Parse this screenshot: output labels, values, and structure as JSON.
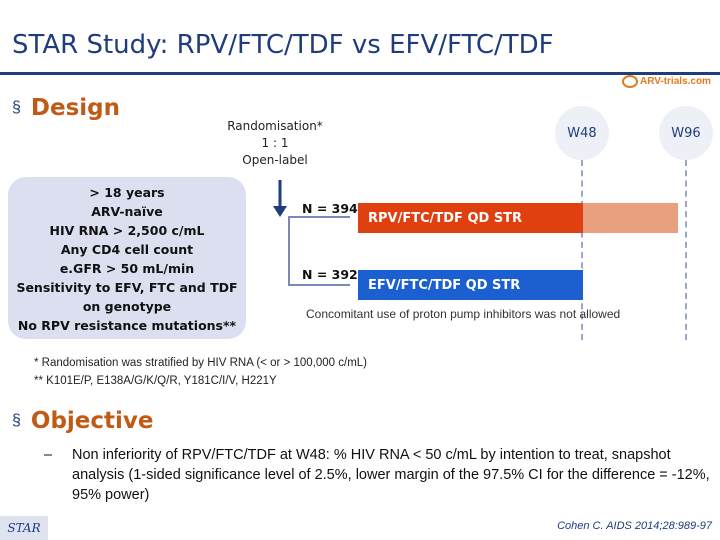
{
  "title": "STAR Study: RPV/FTC/TDF vs EFV/FTC/TDF",
  "logo": {
    "text": "ARV-trials.com"
  },
  "design": {
    "bullet": "§",
    "heading": "Design",
    "randomisation": {
      "line1": "Randomisation*",
      "line2": "1 : 1",
      "line3": "Open-label"
    },
    "criteria": [
      "> 18 years",
      "ARV-naïve",
      "HIV RNA > 2,500 c/mL",
      "Any CD4 cell count",
      "e.GFR > 50 mL/min",
      "Sensitivity to EFV, FTC and TDF",
      "on genotype",
      "No RPV resistance mutations**"
    ],
    "timepoints": [
      "W48",
      "W96"
    ],
    "arms": [
      {
        "n": "N = 394",
        "label": "RPV/FTC/TDF QD STR",
        "color": "#e04010"
      },
      {
        "n": "N = 392",
        "label": "EFV/FTC/TDF QD STR",
        "color": "#1c5fd0"
      }
    ],
    "concomitant": "Concomitant use of proton pump inhibitors was not allowed",
    "footnotes": [
      "* Randomisation was stratified by HIV RNA (< or > 100,000 c/mL)",
      "** K101E/P, E138A/G/K/Q/R, Y181C/I/V, H221Y"
    ]
  },
  "objective": {
    "bullet": "§",
    "heading": "Objective",
    "dash": "–",
    "text": "Non inferiority of RPV/FTC/TDF at W48: % HIV RNA < 50 c/mL by intention to treat, snapshot analysis (1-sided significance level of 2.5%, lower margin of the 97.5% CI for the difference = -12%, 95% power)"
  },
  "footer": {
    "tag": "STAR",
    "citation": "Cohen C. AIDS 2014;28:989-97"
  }
}
